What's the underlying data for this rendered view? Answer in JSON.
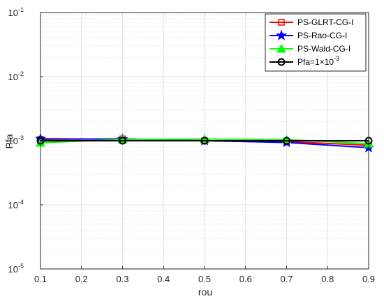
{
  "chart_data": {
    "type": "line",
    "xlabel": "rou",
    "ylabel": "Pfa",
    "xlim": [
      0.1,
      0.9
    ],
    "ylim": [
      1e-05,
      0.1
    ],
    "yscale": "log",
    "grid": true,
    "legend_position": "top-right",
    "x_ticks": [
      "0.1",
      "0.2",
      "0.3",
      "0.4",
      "0.5",
      "0.6",
      "0.7",
      "0.8",
      "0.9"
    ],
    "y_ticks": [
      {
        "base": "10",
        "exp": "-5"
      },
      {
        "base": "10",
        "exp": "-4"
      },
      {
        "base": "10",
        "exp": "-3"
      },
      {
        "base": "10",
        "exp": "-2"
      },
      {
        "base": "10",
        "exp": "-1"
      }
    ],
    "x": [
      0.1,
      0.3,
      0.5,
      0.7,
      0.9
    ],
    "series": [
      {
        "name": "PS-GLRT-CG-I",
        "color": "#ff0000",
        "marker": "square",
        "values": [
          0.00105,
          0.00107,
          0.001,
          0.00097,
          0.00085
        ]
      },
      {
        "name": "PS-Rao-CG-I",
        "color": "#0000ff",
        "marker": "star",
        "values": [
          0.00107,
          0.00106,
          0.001,
          0.00094,
          0.00078
        ]
      },
      {
        "name": "PS-Wald-CG-I",
        "color": "#00ff00",
        "marker": "triangle",
        "values": [
          0.00093,
          0.00105,
          0.00106,
          0.00104,
          0.0009
        ]
      },
      {
        "name": "Pfa=1×10",
        "name_sup": "-3",
        "color": "#000000",
        "marker": "circle",
        "values": [
          0.001,
          0.001,
          0.001,
          0.001,
          0.001
        ]
      }
    ]
  }
}
